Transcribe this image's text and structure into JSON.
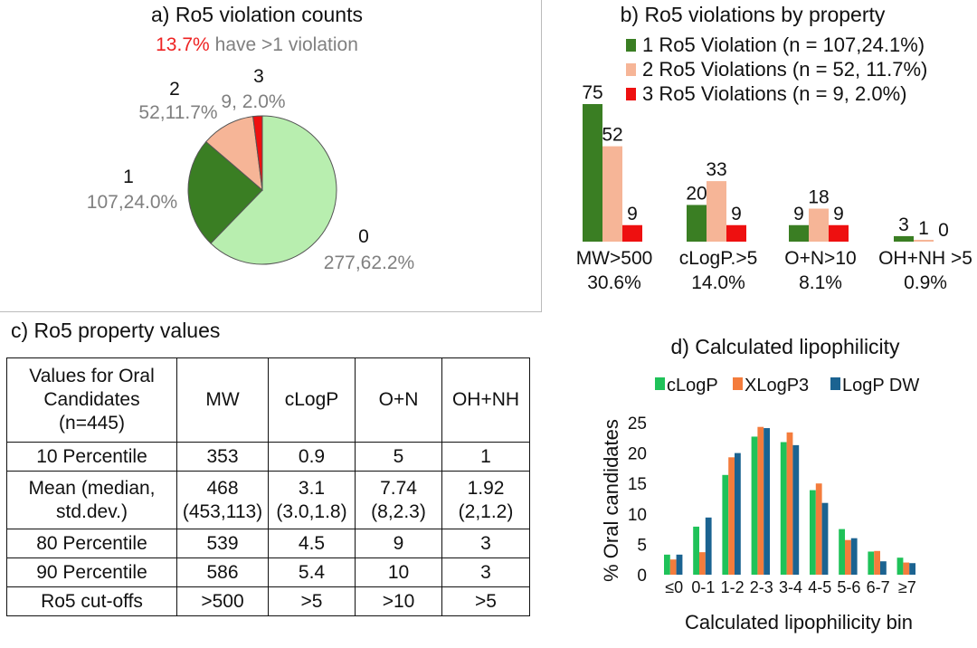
{
  "colors": {
    "pie": [
      "#b8eeaf",
      "#3a7e23",
      "#f6b597",
      "#ee1010"
    ],
    "bars_b": [
      "#3a7e23",
      "#f6b597",
      "#ee1010"
    ],
    "bars_d": [
      "#1fc259",
      "#f47c3c",
      "#1b6391"
    ],
    "highlight": "#ee2222",
    "muted": "#808080"
  },
  "panel_a": {
    "title": "a) Ro5 violation counts",
    "subtitle_highlight": "13.7%",
    "subtitle_rest": "have >1 violation"
  },
  "panel_b": {
    "title": "b) Ro5 violations by property"
  },
  "panel_c": {
    "title": "c) Ro5 property values",
    "header": {
      "label_lines": [
        "Values for Oral",
        "Candidates",
        "(n=445)"
      ],
      "cols": [
        "MW",
        "cLogP",
        "O+N",
        "OH+NH"
      ]
    },
    "rows": [
      {
        "label": [
          "10 Percentile"
        ],
        "cells": [
          [
            "353"
          ],
          [
            "0.9"
          ],
          [
            "5"
          ],
          [
            "1"
          ]
        ]
      },
      {
        "label": [
          "Mean (median,",
          "std.dev.)"
        ],
        "cells": [
          [
            "468",
            "(453,113)"
          ],
          [
            "3.1",
            "(3.0,1.8)"
          ],
          [
            "7.74",
            "(8,2.3)"
          ],
          [
            "1.92",
            "(2,1.2)"
          ]
        ]
      },
      {
        "label": [
          "80 Percentile"
        ],
        "cells": [
          [
            "539"
          ],
          [
            "4.5"
          ],
          [
            "9"
          ],
          [
            "3"
          ]
        ]
      },
      {
        "label": [
          "90 Percentile"
        ],
        "cells": [
          [
            "586"
          ],
          [
            "5.4"
          ],
          [
            "10"
          ],
          [
            "3"
          ]
        ]
      },
      {
        "label": [
          "Ro5 cut-offs"
        ],
        "cells": [
          [
            ">500"
          ],
          [
            ">5"
          ],
          [
            ">10"
          ],
          [
            ">5"
          ]
        ]
      }
    ]
  },
  "panel_d": {
    "title": "d) Calculated lipophilicity"
  },
  "chart_data": [
    {
      "type": "pie",
      "title": "a) Ro5 violation counts",
      "slices": [
        {
          "label": "0",
          "value": 277,
          "value_label": "277,62.2%"
        },
        {
          "label": "1",
          "value": 107,
          "value_label": "107,24.0%"
        },
        {
          "label": "2",
          "value": 52,
          "value_label": "52,11.7%"
        },
        {
          "label": "3",
          "value": 9,
          "value_label": "9, 2.0%"
        }
      ]
    },
    {
      "type": "bar",
      "title": "b) Ro5 violations by property",
      "categories": [
        "MW>500",
        "cLogP.>5",
        "O+N>10",
        "OH+NH >5"
      ],
      "category_sublabels": [
        "30.6%",
        "14.0%",
        "8.1%",
        "0.9%"
      ],
      "series": [
        {
          "name": "1 Ro5 Violation (n = 107,24.1%)",
          "values": [
            75,
            20,
            9,
            3
          ]
        },
        {
          "name": "2 Ro5 Violations (n = 52, 11.7%)",
          "values": [
            52,
            33,
            18,
            1
          ]
        },
        {
          "name": "3 Ro5 Violations (n = 9, 2.0%)",
          "values": [
            9,
            9,
            9,
            0
          ]
        }
      ],
      "legend": "top-right"
    },
    {
      "type": "bar",
      "title": "d) Calculated lipophilicity",
      "categories": [
        "≤0",
        "0-1",
        "1-2",
        "2-3",
        "3-4",
        "4-5",
        "5-6",
        "6-7",
        "≥7"
      ],
      "series": [
        {
          "name": "cLogP",
          "values": [
            3.3,
            7.9,
            16.4,
            22.7,
            21.8,
            13.9,
            7.5,
            3.8,
            2.8
          ]
        },
        {
          "name": "XLogP3",
          "values": [
            2.5,
            3.7,
            19.3,
            24.3,
            23.4,
            15.0,
            5.7,
            3.9,
            2.0
          ]
        },
        {
          "name": "LogP DW",
          "values": [
            3.3,
            9.4,
            20.0,
            24.1,
            21.3,
            11.8,
            6.0,
            2.2,
            1.9
          ]
        }
      ],
      "xlabel": "Calculated lipophilicity bin",
      "ylabel": "% Oral candidates",
      "yticks": [
        0,
        5,
        10,
        15,
        20,
        25
      ],
      "ylim": [
        0,
        25
      ],
      "grid": false,
      "legend": "top"
    }
  ]
}
